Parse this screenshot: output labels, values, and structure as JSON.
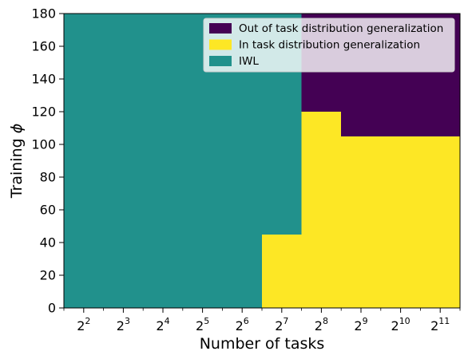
{
  "chart_data": {
    "type": "heatmap",
    "title": "",
    "xlabel": "Number of tasks",
    "ylabel_text": "Training ",
    "ylabel_symbol": "ϕ",
    "x_scale": "log2",
    "x_range_log2": [
      1.5,
      11.5
    ],
    "x_tick_exponents": [
      2,
      3,
      4,
      5,
      6,
      7,
      8,
      9,
      10,
      11
    ],
    "x_tick_base": "2",
    "x_tick_exponent_labels": [
      "2",
      "3",
      "4",
      "5",
      "6",
      "7",
      "8",
      "9",
      "10",
      "11"
    ],
    "ylim": [
      0,
      180
    ],
    "y_ticks": [
      0,
      20,
      40,
      60,
      80,
      100,
      120,
      140,
      160,
      180
    ],
    "y_tick_labels": [
      "0",
      "20",
      "40",
      "60",
      "80",
      "100",
      "120",
      "140",
      "160",
      "180"
    ],
    "grid": false,
    "legend_position": "upper-right",
    "colors": {
      "ood": "#440154",
      "id": "#fde725",
      "iwl": "#21918c"
    },
    "series": [
      {
        "key": "ood",
        "name": "Out of task distribution generalization"
      },
      {
        "key": "id",
        "name": "In task distribution generalization"
      },
      {
        "key": "iwl",
        "name": "IWL"
      }
    ],
    "regions": [
      {
        "class": "iwl",
        "x_log2": [
          1.5,
          6.5
        ],
        "y": [
          0,
          180
        ]
      },
      {
        "class": "id",
        "x_log2": [
          6.5,
          7.5
        ],
        "y": [
          0,
          45
        ]
      },
      {
        "class": "iwl",
        "x_log2": [
          6.5,
          7.5
        ],
        "y": [
          45,
          180
        ]
      },
      {
        "class": "id",
        "x_log2": [
          7.5,
          8.5
        ],
        "y": [
          0,
          120
        ]
      },
      {
        "class": "ood",
        "x_log2": [
          7.5,
          8.5
        ],
        "y": [
          120,
          180
        ]
      },
      {
        "class": "id",
        "x_log2": [
          8.5,
          11.5
        ],
        "y": [
          0,
          105
        ]
      },
      {
        "class": "ood",
        "x_log2": [
          8.5,
          11.5
        ],
        "y": [
          105,
          180
        ]
      }
    ]
  }
}
